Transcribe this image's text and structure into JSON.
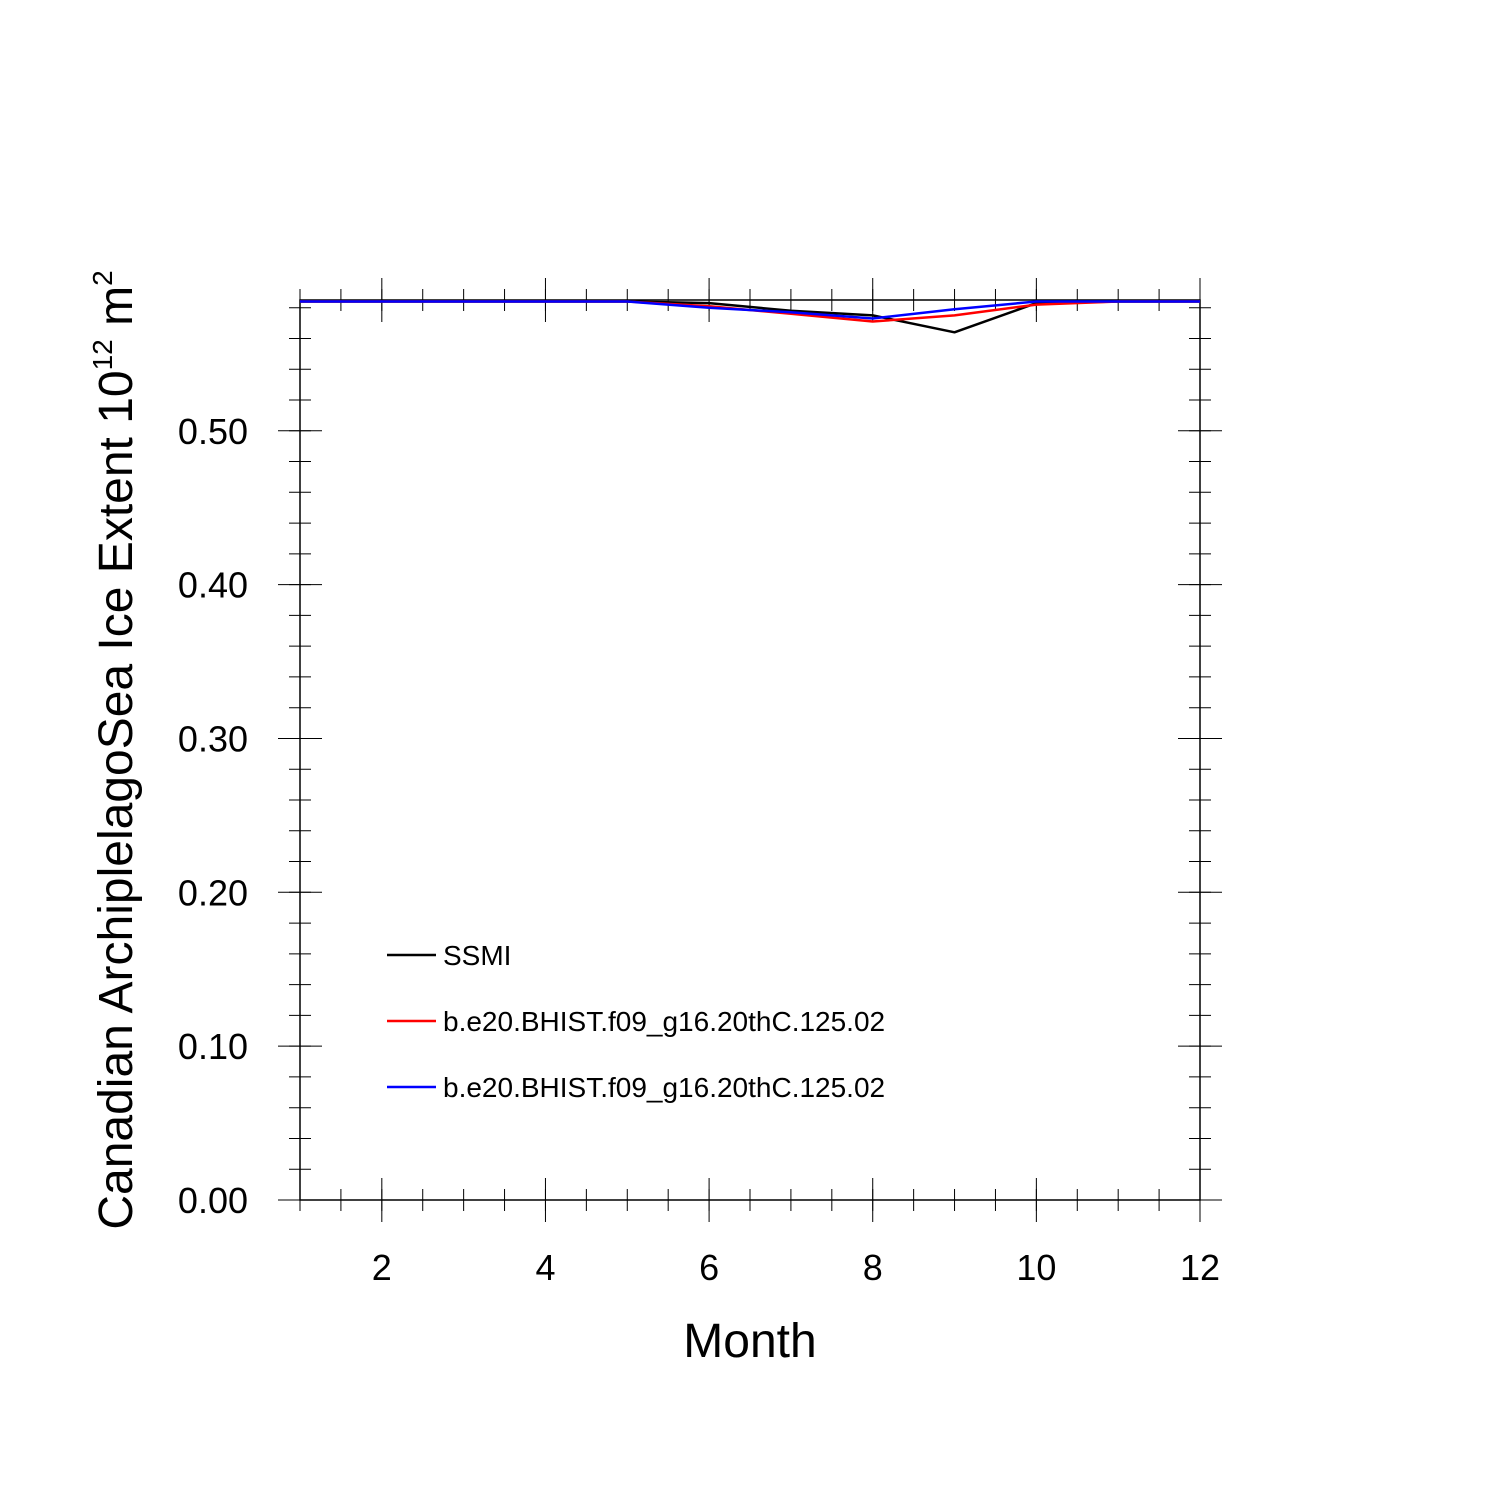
{
  "chart_data": {
    "type": "line",
    "xlabel": "Month",
    "ylabel": {
      "main": "Canadian ArchiplelagoSea Ice Extent 10",
      "exponent": "12",
      "unit_space": " m",
      "unit_exponent": "2"
    },
    "xlim": [
      1,
      12
    ],
    "ylim": [
      0,
      0.585
    ],
    "x_ticks": [
      2,
      4,
      6,
      8,
      10,
      12
    ],
    "y_ticks": [
      0.0,
      0.1,
      0.2,
      0.3,
      0.4,
      0.5
    ],
    "y_tick_labels": [
      "0.00",
      "0.10",
      "0.20",
      "0.30",
      "0.40",
      "0.50"
    ],
    "x_minor_step": 0.5,
    "y_minor_step": 0.02,
    "grid": false,
    "legend_position": "bottom-left",
    "x": [
      1,
      2,
      3,
      4,
      5,
      6,
      7,
      8,
      9,
      10,
      11,
      12
    ],
    "series": [
      {
        "name": "SSMI",
        "color": "#000000",
        "values": [
          0.584,
          0.584,
          0.584,
          0.584,
          0.584,
          0.583,
          0.578,
          0.575,
          0.564,
          0.583,
          0.584,
          0.584
        ]
      },
      {
        "name": "b.e20.BHIST.f09_g16.20thC.125.02",
        "color": "#ff0000",
        "values": [
          0.584,
          0.584,
          0.584,
          0.584,
          0.584,
          0.581,
          0.576,
          0.571,
          0.575,
          0.582,
          0.584,
          0.584
        ]
      },
      {
        "name": "b.e20.BHIST.f09_g16.20thC.125.02",
        "color": "#0000ff",
        "values": [
          0.584,
          0.584,
          0.584,
          0.584,
          0.584,
          0.58,
          0.577,
          0.573,
          0.579,
          0.584,
          0.584,
          0.584
        ]
      }
    ]
  }
}
